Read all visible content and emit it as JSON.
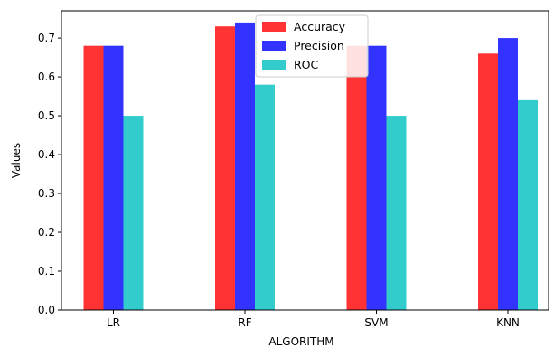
{
  "chart_data": {
    "type": "bar",
    "title": "",
    "xlabel": "ALGORITHM",
    "ylabel": "Values",
    "categories": [
      "LR",
      "RF",
      "SVM",
      "KNN"
    ],
    "series": [
      {
        "name": "Accuracy",
        "color": "#ff3333",
        "values": [
          0.68,
          0.73,
          0.68,
          0.66
        ]
      },
      {
        "name": "Precision",
        "color": "#3333ff",
        "values": [
          0.68,
          0.74,
          0.68,
          0.7
        ]
      },
      {
        "name": "ROC",
        "color": "#33cccc",
        "values": [
          0.5,
          0.58,
          0.5,
          0.54
        ]
      }
    ],
    "ylim": [
      0,
      0.77
    ],
    "yticks": [
      "0.0",
      "0.1",
      "0.2",
      "0.3",
      "0.4",
      "0.5",
      "0.6",
      "0.7"
    ],
    "grid": false,
    "legend": "top-center"
  }
}
